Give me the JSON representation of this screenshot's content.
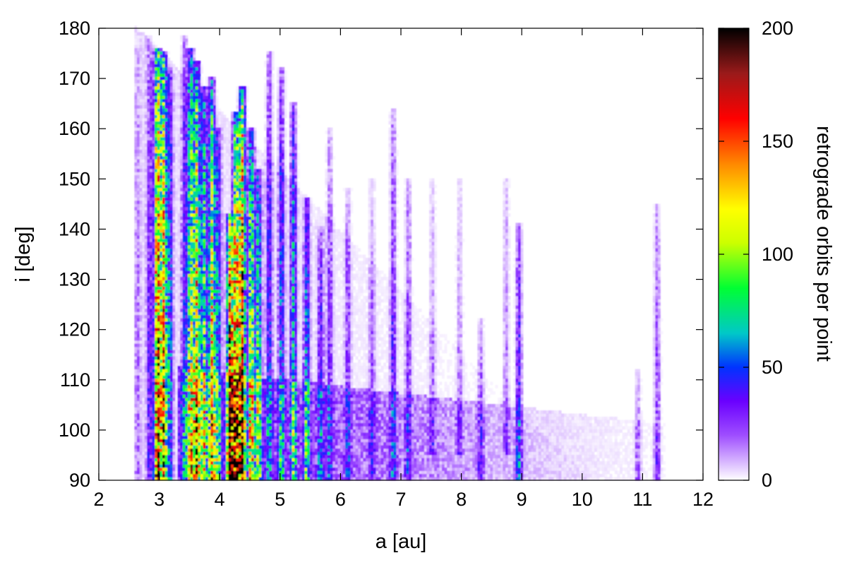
{
  "chart_data": {
    "type": "heatmap",
    "title": "",
    "xlabel": "a [au]",
    "ylabel": "i [deg]",
    "colorbar_label": "retrograde orbits per point",
    "xlim": [
      2,
      12
    ],
    "ylim": [
      90,
      180
    ],
    "x_ticks": [
      2,
      3,
      4,
      5,
      6,
      7,
      8,
      9,
      10,
      11,
      12
    ],
    "y_ticks": [
      90,
      100,
      110,
      120,
      130,
      140,
      150,
      160,
      170,
      180
    ],
    "color_range": [
      0,
      200
    ],
    "color_ticks": [
      0,
      50,
      100,
      150,
      200
    ],
    "colormap": [
      {
        "v": 0,
        "color": "#ffffff"
      },
      {
        "v": 20,
        "color": "#9e4dff"
      },
      {
        "v": 35,
        "color": "#6a00ff"
      },
      {
        "v": 50,
        "color": "#0033ff"
      },
      {
        "v": 65,
        "color": "#00c8c8"
      },
      {
        "v": 85,
        "color": "#00ff33"
      },
      {
        "v": 105,
        "color": "#ccff00"
      },
      {
        "v": 120,
        "color": "#ffff00"
      },
      {
        "v": 140,
        "color": "#ff8800"
      },
      {
        "v": 160,
        "color": "#ff0000"
      },
      {
        "v": 180,
        "color": "#9a1a1a"
      },
      {
        "v": 200,
        "color": "#000000"
      }
    ],
    "features": [
      {
        "a": 2.62,
        "i_min": 90,
        "i_max": 176,
        "peak": 12
      },
      {
        "a": 2.82,
        "i_min": 90,
        "i_max": 178,
        "peak": 30
      },
      {
        "a": 2.95,
        "i_min": 90,
        "i_max": 176,
        "peak": 170
      },
      {
        "a": 3.05,
        "i_min": 90,
        "i_max": 175,
        "peak": 150
      },
      {
        "a": 3.15,
        "i_min": 90,
        "i_max": 172,
        "peak": 60
      },
      {
        "a": 3.4,
        "i_min": 90,
        "i_max": 178,
        "peak": 40
      },
      {
        "a": 3.5,
        "i_min": 90,
        "i_max": 176,
        "peak": 110
      },
      {
        "a": 3.6,
        "i_min": 90,
        "i_max": 173,
        "peak": 140
      },
      {
        "a": 3.72,
        "i_min": 90,
        "i_max": 168,
        "peak": 95
      },
      {
        "a": 3.85,
        "i_min": 90,
        "i_max": 170,
        "peak": 125
      },
      {
        "a": 3.95,
        "i_min": 90,
        "i_max": 160,
        "peak": 70
      },
      {
        "a": 4.15,
        "i_min": 90,
        "i_max": 143,
        "peak": 200
      },
      {
        "a": 4.25,
        "i_min": 90,
        "i_max": 163,
        "peak": 160
      },
      {
        "a": 4.35,
        "i_min": 90,
        "i_max": 168,
        "peak": 185
      },
      {
        "a": 4.5,
        "i_min": 90,
        "i_max": 160,
        "peak": 120
      },
      {
        "a": 4.62,
        "i_min": 90,
        "i_max": 152,
        "peak": 90
      },
      {
        "a": 4.8,
        "i_min": 90,
        "i_max": 175,
        "peak": 45
      },
      {
        "a": 5.0,
        "i_min": 90,
        "i_max": 172,
        "peak": 55
      },
      {
        "a": 5.2,
        "i_min": 90,
        "i_max": 165,
        "peak": 70
      },
      {
        "a": 5.42,
        "i_min": 90,
        "i_max": 146,
        "peak": 65
      },
      {
        "a": 5.65,
        "i_min": 90,
        "i_max": 140,
        "peak": 40
      },
      {
        "a": 5.8,
        "i_min": 90,
        "i_max": 160,
        "peak": 30
      },
      {
        "a": 6.1,
        "i_min": 90,
        "i_max": 148,
        "peak": 28
      },
      {
        "a": 6.5,
        "i_min": 90,
        "i_max": 150,
        "peak": 22
      },
      {
        "a": 6.85,
        "i_min": 90,
        "i_max": 164,
        "peak": 35
      },
      {
        "a": 7.1,
        "i_min": 90,
        "i_max": 150,
        "peak": 30
      },
      {
        "a": 7.5,
        "i_min": 95,
        "i_max": 150,
        "peak": 18
      },
      {
        "a": 7.95,
        "i_min": 95,
        "i_max": 150,
        "peak": 18
      },
      {
        "a": 8.3,
        "i_min": 90,
        "i_max": 122,
        "peak": 25
      },
      {
        "a": 8.72,
        "i_min": 95,
        "i_max": 150,
        "peak": 20
      },
      {
        "a": 8.93,
        "i_min": 90,
        "i_max": 141,
        "peak": 45
      },
      {
        "a": 10.9,
        "i_min": 90,
        "i_max": 112,
        "peak": 20
      },
      {
        "a": 11.22,
        "i_min": 90,
        "i_max": 145,
        "peak": 28
      }
    ]
  }
}
